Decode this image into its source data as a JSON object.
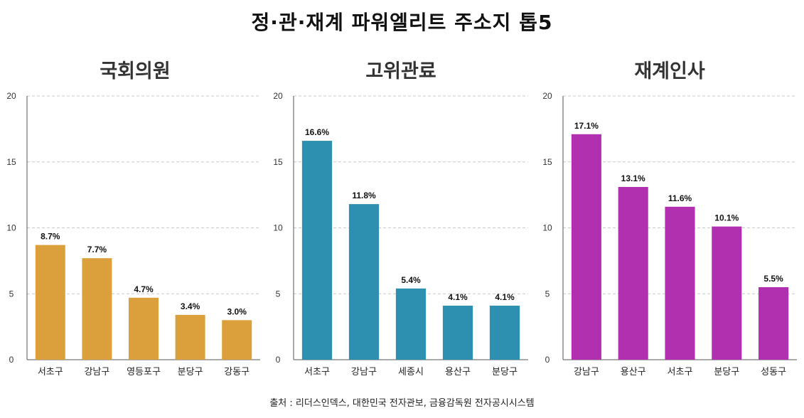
{
  "title": "정·관·재계 파워엘리트 주소지 톱5",
  "source": "출처 : 리더스인덱스, 대한민국 전자관보, 금융감독원 전자공시시스템",
  "chart_data": [
    {
      "type": "bar",
      "title": "국회의원",
      "categories": [
        "서초구",
        "강남구",
        "영등포구",
        "분당구",
        "강동구"
      ],
      "values": [
        8.7,
        7.7,
        4.7,
        3.4,
        3.0
      ],
      "labels": [
        "8.7%",
        "7.7%",
        "4.7%",
        "3.4%",
        "3.0%"
      ],
      "color": "#DBA03C",
      "ylim": [
        0,
        20
      ],
      "yticks": [
        0,
        5,
        10,
        15,
        20
      ],
      "grid": true
    },
    {
      "type": "bar",
      "title": "고위관료",
      "categories": [
        "서초구",
        "강남구",
        "세종시",
        "용산구",
        "분당구"
      ],
      "values": [
        16.6,
        11.8,
        5.4,
        4.1,
        4.1
      ],
      "labels": [
        "16.6%",
        "11.8%",
        "5.4%",
        "4.1%",
        "4.1%"
      ],
      "color": "#2E90B0",
      "ylim": [
        0,
        20
      ],
      "yticks": [
        0,
        5,
        10,
        15,
        20
      ],
      "grid": true
    },
    {
      "type": "bar",
      "title": "재계인사",
      "categories": [
        "강남구",
        "용산구",
        "서초구",
        "분당구",
        "성동구"
      ],
      "values": [
        17.1,
        13.1,
        11.6,
        10.1,
        5.5
      ],
      "labels": [
        "17.1%",
        "13.1%",
        "11.6%",
        "10.1%",
        "5.5%"
      ],
      "color": "#B030B0",
      "ylim": [
        0,
        20
      ],
      "yticks": [
        0,
        5,
        10,
        15,
        20
      ],
      "grid": true
    }
  ]
}
